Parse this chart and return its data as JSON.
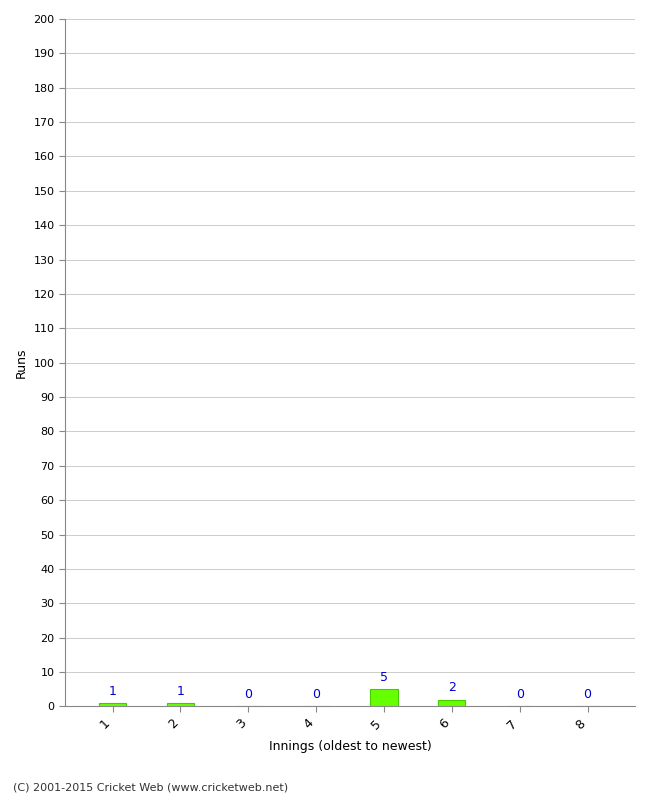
{
  "values": [
    1,
    1,
    0,
    0,
    5,
    2,
    0,
    0
  ],
  "categories": [
    1,
    2,
    3,
    4,
    5,
    6,
    7,
    8
  ],
  "bar_color": "#66ff00",
  "bar_edge_color": "#44cc00",
  "ylabel": "Runs",
  "xlabel": "Innings (oldest to newest)",
  "ylim": [
    0,
    200
  ],
  "ytick_step": 10,
  "label_color": "#0000cc",
  "footer": "(C) 2001-2015 Cricket Web (www.cricketweb.net)",
  "background_color": "#ffffff",
  "grid_color": "#cccccc",
  "tick_color": "#888888",
  "bar_width": 0.4
}
